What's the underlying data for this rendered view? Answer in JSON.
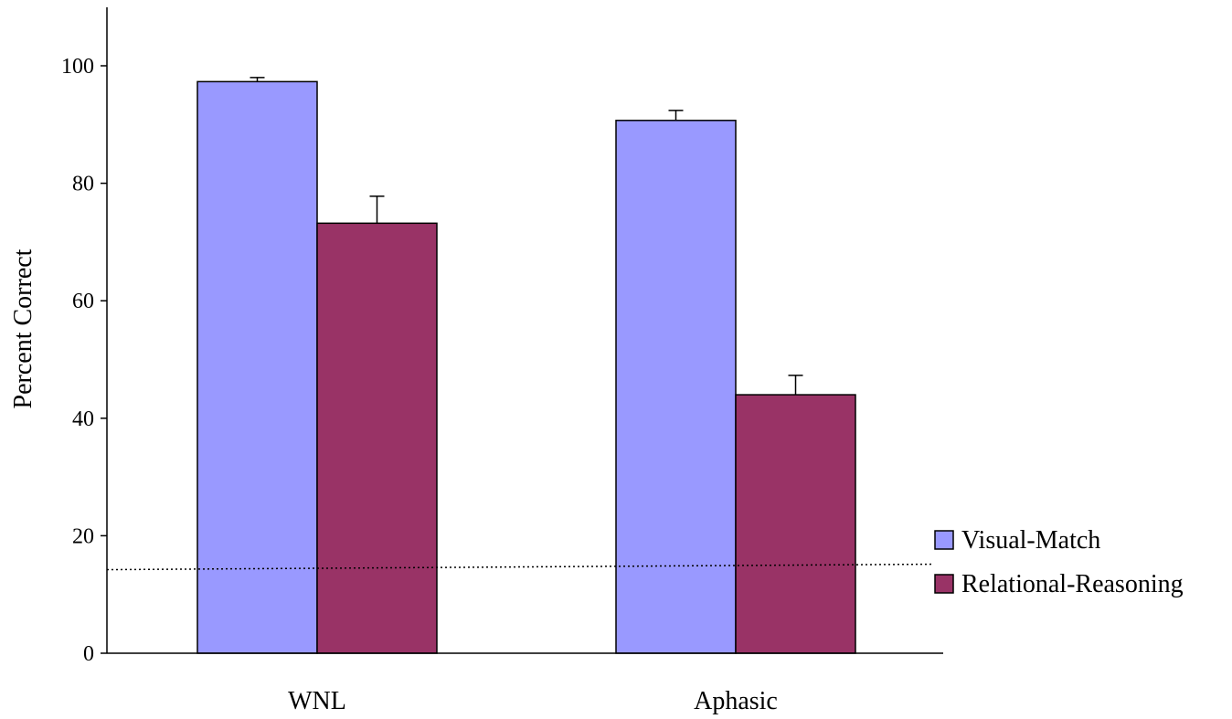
{
  "chart_data": {
    "type": "bar",
    "categories": [
      "WNL",
      "Aphasic"
    ],
    "series": [
      {
        "name": "Visual-Match",
        "values": [
          97.3,
          90.7
        ],
        "errors": [
          0.7,
          1.7
        ],
        "color": "#9999ff"
      },
      {
        "name": "Relational-Reasoning",
        "values": [
          73.2,
          44.0
        ],
        "errors": [
          4.6,
          3.3
        ],
        "color": "#993366"
      }
    ],
    "reference_line": {
      "value": 15,
      "style": "dotted"
    },
    "ylabel": "Percent Correct",
    "xlabel": "",
    "ylim": [
      0,
      110
    ],
    "yticks": [
      0,
      20,
      40,
      60,
      80,
      100
    ],
    "grid": false,
    "legend_position": "right"
  }
}
